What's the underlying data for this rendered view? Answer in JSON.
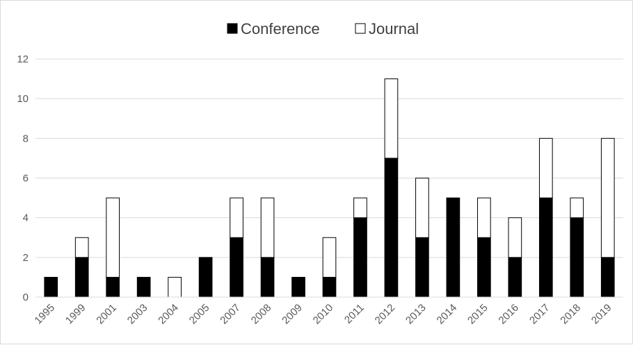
{
  "chart_data": {
    "type": "bar",
    "stacked": true,
    "categories": [
      "1995",
      "1999",
      "2001",
      "2003",
      "2004",
      "2005",
      "2007",
      "2008",
      "2009",
      "2010",
      "2011",
      "2012",
      "2013",
      "2014",
      "2015",
      "2016",
      "2017",
      "2018",
      "2019"
    ],
    "series": [
      {
        "name": "Conference",
        "color": "#000000",
        "values": [
          1,
          2,
          1,
          1,
          0,
          2,
          3,
          2,
          1,
          1,
          4,
          7,
          3,
          5,
          3,
          2,
          5,
          4,
          2
        ]
      },
      {
        "name": "Journal",
        "color": "#ffffff",
        "values": [
          0,
          1,
          4,
          0,
          1,
          0,
          2,
          3,
          0,
          2,
          1,
          4,
          3,
          0,
          2,
          2,
          3,
          1,
          6
        ]
      }
    ],
    "ylim": [
      0,
      12
    ],
    "yticks": [
      0,
      2,
      4,
      6,
      8,
      10,
      12
    ],
    "grid": true,
    "legend": "top-center",
    "title": "",
    "xlabel": "",
    "ylabel": ""
  }
}
